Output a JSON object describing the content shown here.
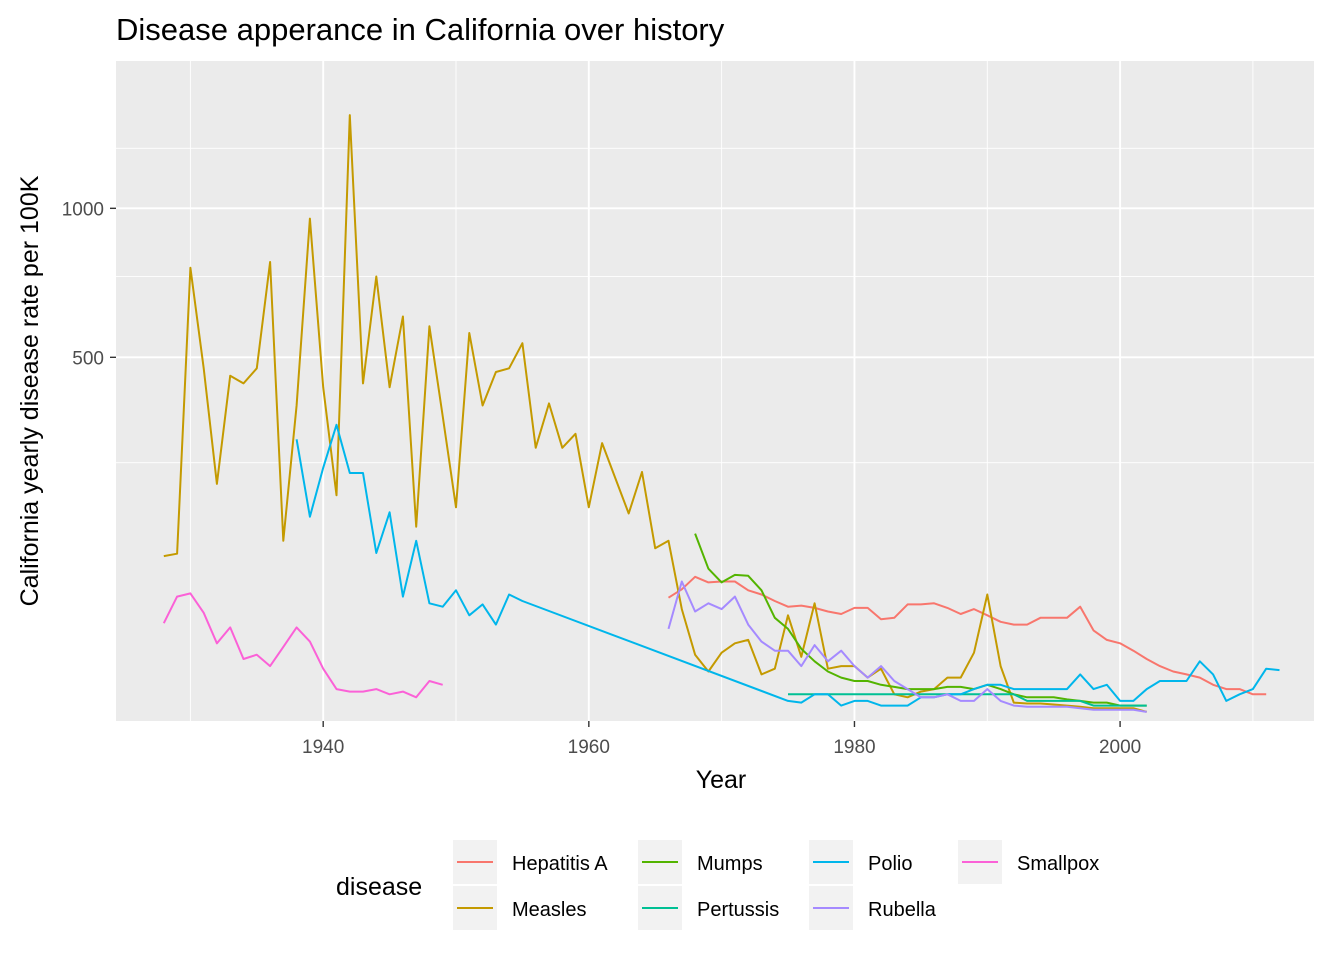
{
  "chart_data": {
    "type": "line",
    "title": "Disease apperance in California over history",
    "xlabel": "Year",
    "ylabel": "California yearly disease rate per 100K",
    "x_ticks": [
      "1940",
      "1960",
      "1980",
      "2000"
    ],
    "y_ticks": [
      "500",
      "1000"
    ],
    "scale": "square root y axis",
    "xlim": [
      1924.4,
      2014.6
    ],
    "ylim": [
      0,
      1500
    ],
    "grid": true,
    "legend": {
      "title": "disease",
      "position": "bottom"
    },
    "series": [
      {
        "name": "Hepatitis A",
        "color": "#F8766D",
        "points": [
          [
            1966,
            55
          ],
          [
            1967,
            63
          ],
          [
            1968,
            76
          ],
          [
            1969,
            70
          ],
          [
            1970,
            71
          ],
          [
            1971,
            71
          ],
          [
            1972,
            62
          ],
          [
            1973,
            58
          ],
          [
            1974,
            52
          ],
          [
            1975,
            47
          ],
          [
            1976,
            48
          ],
          [
            1977,
            46
          ],
          [
            1978,
            43
          ],
          [
            1979,
            41
          ],
          [
            1980,
            46
          ],
          [
            1981,
            46
          ],
          [
            1982,
            37
          ],
          [
            1983,
            38
          ],
          [
            1984,
            49
          ],
          [
            1985,
            49
          ],
          [
            1986,
            50
          ],
          [
            1987,
            46
          ],
          [
            1988,
            41
          ],
          [
            1989,
            45
          ],
          [
            1990,
            40
          ],
          [
            1991,
            35
          ],
          [
            1992,
            33
          ],
          [
            1993,
            33
          ],
          [
            1994,
            38
          ],
          [
            1995,
            38
          ],
          [
            1996,
            38
          ],
          [
            1997,
            47
          ],
          [
            1998,
            29
          ],
          [
            1999,
            23
          ],
          [
            2000,
            21
          ],
          [
            2001,
            17
          ],
          [
            2002,
            13
          ],
          [
            2003,
            10
          ],
          [
            2004,
            8
          ],
          [
            2005,
            7
          ],
          [
            2006,
            6
          ],
          [
            2007,
            4
          ],
          [
            2008,
            3
          ],
          [
            2009,
            3
          ],
          [
            2010,
            2
          ],
          [
            2011,
            2
          ]
        ]
      },
      {
        "name": "Measles",
        "color": "#C49A00",
        "points": [
          [
            1928,
            100
          ],
          [
            1929,
            103
          ],
          [
            1930,
            780
          ],
          [
            1931,
            470
          ],
          [
            1932,
            210
          ],
          [
            1933,
            450
          ],
          [
            1934,
            430
          ],
          [
            1935,
            470
          ],
          [
            1936,
            800
          ],
          [
            1937,
            120
          ],
          [
            1938,
            375
          ],
          [
            1939,
            960
          ],
          [
            1940,
            420
          ],
          [
            1941,
            190
          ],
          [
            1942,
            1400
          ],
          [
            1943,
            430
          ],
          [
            1944,
            750
          ],
          [
            1945,
            420
          ],
          [
            1946,
            620
          ],
          [
            1947,
            140
          ],
          [
            1948,
            590
          ],
          [
            1949,
            350
          ],
          [
            1950,
            170
          ],
          [
            1951,
            570
          ],
          [
            1952,
            375
          ],
          [
            1953,
            460
          ],
          [
            1954,
            470
          ],
          [
            1955,
            540
          ],
          [
            1956,
            280
          ],
          [
            1957,
            380
          ],
          [
            1958,
            280
          ],
          [
            1959,
            310
          ],
          [
            1960,
            170
          ],
          [
            1961,
            290
          ],
          [
            1962,
            220
          ],
          [
            1963,
            160
          ],
          [
            1964,
            232
          ],
          [
            1965,
            110
          ],
          [
            1966,
            120
          ],
          [
            1967,
            45
          ],
          [
            1968,
            15
          ],
          [
            1969,
            8
          ],
          [
            1970,
            16
          ],
          [
            1971,
            21
          ],
          [
            1972,
            23
          ],
          [
            1973,
            7
          ],
          [
            1974,
            9
          ],
          [
            1975,
            40
          ],
          [
            1976,
            14
          ],
          [
            1977,
            50
          ],
          [
            1978,
            9
          ],
          [
            1979,
            10
          ],
          [
            1980,
            10
          ],
          [
            1981,
            6
          ],
          [
            1982,
            9
          ],
          [
            1983,
            2
          ],
          [
            1984,
            1.5
          ],
          [
            1985,
            2.5
          ],
          [
            1986,
            3
          ],
          [
            1987,
            6
          ],
          [
            1988,
            6
          ],
          [
            1989,
            16
          ],
          [
            1990,
            58
          ],
          [
            1991,
            10
          ],
          [
            1992,
            0.8
          ],
          [
            1993,
            0.7
          ],
          [
            1994,
            0.7
          ],
          [
            1995,
            0.6
          ],
          [
            1996,
            0.5
          ],
          [
            1997,
            0.4
          ],
          [
            1998,
            0.3
          ],
          [
            1999,
            0.3
          ],
          [
            2000,
            0.3
          ],
          [
            2001,
            0.3
          ],
          [
            2002,
            0.1
          ]
        ]
      },
      {
        "name": "Mumps",
        "color": "#53B400",
        "points": [
          [
            1968,
            130
          ],
          [
            1969,
            85
          ],
          [
            1970,
            70
          ],
          [
            1971,
            78
          ],
          [
            1972,
            77
          ],
          [
            1973,
            62
          ],
          [
            1974,
            38
          ],
          [
            1975,
            30
          ],
          [
            1976,
            18
          ],
          [
            1977,
            12
          ],
          [
            1978,
            8
          ],
          [
            1979,
            6
          ],
          [
            1980,
            5
          ],
          [
            1981,
            5
          ],
          [
            1982,
            4
          ],
          [
            1983,
            3.5
          ],
          [
            1984,
            3
          ],
          [
            1985,
            3
          ],
          [
            1986,
            3
          ],
          [
            1987,
            3.5
          ],
          [
            1988,
            3.5
          ],
          [
            1989,
            3
          ],
          [
            1990,
            4
          ],
          [
            1991,
            3
          ],
          [
            1992,
            2
          ],
          [
            1993,
            1.5
          ],
          [
            1994,
            1.5
          ],
          [
            1995,
            1.5
          ],
          [
            1996,
            1.2
          ],
          [
            1997,
            1
          ],
          [
            1998,
            0.8
          ],
          [
            1999,
            0.8
          ],
          [
            2000,
            0.5
          ],
          [
            2001,
            0.5
          ],
          [
            2002,
            0.5
          ]
        ]
      },
      {
        "name": "Pertussis",
        "color": "#00C094",
        "points": [
          [
            1975,
            2
          ],
          [
            1976,
            2
          ],
          [
            1977,
            2
          ],
          [
            1978,
            2
          ],
          [
            1979,
            2
          ],
          [
            1980,
            2
          ],
          [
            1981,
            2
          ],
          [
            1982,
            2
          ],
          [
            1983,
            2
          ],
          [
            1984,
            2
          ],
          [
            1985,
            2
          ],
          [
            1986,
            2
          ],
          [
            1987,
            2
          ],
          [
            1988,
            2
          ],
          [
            1989,
            2
          ],
          [
            1990,
            2
          ],
          [
            1991,
            2
          ],
          [
            1992,
            2
          ],
          [
            1993,
            1
          ],
          [
            1994,
            1
          ],
          [
            1995,
            1
          ],
          [
            1996,
            1
          ],
          [
            1997,
            1
          ],
          [
            1998,
            0.5
          ],
          [
            1999,
            0.5
          ],
          [
            2000,
            0.5
          ],
          [
            2001,
            0.5
          ],
          [
            2002,
            0.5
          ]
        ]
      },
      {
        "name": "Polio",
        "color": "#00B6EB",
        "points": [
          [
            1938,
            298
          ],
          [
            1939,
            155
          ],
          [
            1940,
            240
          ],
          [
            1941,
            330
          ],
          [
            1942,
            230
          ],
          [
            1943,
            230
          ],
          [
            1944,
            104
          ],
          [
            1945,
            162
          ],
          [
            1946,
            56
          ],
          [
            1947,
            120
          ],
          [
            1948,
            50
          ],
          [
            1949,
            47
          ],
          [
            1950,
            62
          ],
          [
            1951,
            40
          ],
          [
            1952,
            49
          ],
          [
            1953,
            33
          ],
          [
            1954,
            58
          ],
          [
            1955,
            52
          ],
          [
            1975,
            1
          ],
          [
            1976,
            0.8
          ],
          [
            1977,
            2
          ],
          [
            1978,
            2
          ],
          [
            1979,
            0.5
          ],
          [
            1980,
            1
          ],
          [
            1981,
            1
          ],
          [
            1982,
            0.5
          ],
          [
            1983,
            0.5
          ],
          [
            1984,
            0.5
          ],
          [
            1985,
            1.5
          ],
          [
            1986,
            1.5
          ],
          [
            1987,
            2
          ],
          [
            1988,
            2
          ],
          [
            1989,
            3
          ],
          [
            1990,
            4
          ],
          [
            1991,
            4
          ],
          [
            1992,
            3
          ],
          [
            1993,
            3
          ],
          [
            1994,
            3
          ],
          [
            1995,
            3
          ],
          [
            1996,
            3
          ],
          [
            1997,
            7
          ],
          [
            1998,
            3
          ],
          [
            1999,
            4
          ],
          [
            2000,
            1
          ],
          [
            2001,
            1
          ],
          [
            2002,
            3
          ],
          [
            2003,
            5
          ],
          [
            2004,
            5
          ],
          [
            2005,
            5
          ],
          [
            2006,
            12
          ],
          [
            2007,
            7
          ],
          [
            2008,
            1
          ],
          [
            2009,
            2
          ],
          [
            2010,
            3
          ],
          [
            2011,
            9
          ],
          [
            2012,
            8.5
          ]
        ]
      },
      {
        "name": "Rubella",
        "color": "#A58AFF",
        "points": [
          [
            1966,
            30
          ],
          [
            1967,
            71
          ],
          [
            1968,
            43
          ],
          [
            1969,
            50
          ],
          [
            1970,
            45
          ],
          [
            1971,
            56
          ],
          [
            1972,
            33
          ],
          [
            1973,
            22
          ],
          [
            1974,
            17
          ],
          [
            1975,
            17
          ],
          [
            1976,
            10
          ],
          [
            1977,
            20
          ],
          [
            1978,
            12
          ],
          [
            1979,
            17
          ],
          [
            1980,
            10
          ],
          [
            1981,
            6
          ],
          [
            1982,
            10
          ],
          [
            1983,
            5
          ],
          [
            1984,
            3
          ],
          [
            1985,
            1.5
          ],
          [
            1986,
            1.5
          ],
          [
            1987,
            2
          ],
          [
            1988,
            1
          ],
          [
            1989,
            1
          ],
          [
            1990,
            3
          ],
          [
            1991,
            1
          ],
          [
            1992,
            0.5
          ],
          [
            1993,
            0.4
          ],
          [
            1994,
            0.4
          ],
          [
            1995,
            0.4
          ],
          [
            1996,
            0.4
          ],
          [
            1997,
            0.3
          ],
          [
            1998,
            0.2
          ],
          [
            1999,
            0.2
          ],
          [
            2000,
            0.2
          ],
          [
            2001,
            0.2
          ],
          [
            2002,
            0.1
          ]
        ]
      },
      {
        "name": "Smallpox",
        "color": "#FB61D7",
        "points": [
          [
            1928,
            34
          ],
          [
            1929,
            56
          ],
          [
            1930,
            59
          ],
          [
            1931,
            42
          ],
          [
            1932,
            21
          ],
          [
            1933,
            31
          ],
          [
            1934,
            13
          ],
          [
            1935,
            15
          ],
          [
            1936,
            10
          ],
          [
            1937,
            19
          ],
          [
            1938,
            31
          ],
          [
            1939,
            22
          ],
          [
            1940,
            9
          ],
          [
            1941,
            3
          ],
          [
            1942,
            2.5
          ],
          [
            1943,
            2.5
          ],
          [
            1944,
            3
          ],
          [
            1945,
            2
          ],
          [
            1946,
            2.5
          ],
          [
            1947,
            1.5
          ],
          [
            1948,
            5
          ],
          [
            1949,
            4
          ]
        ]
      }
    ]
  }
}
